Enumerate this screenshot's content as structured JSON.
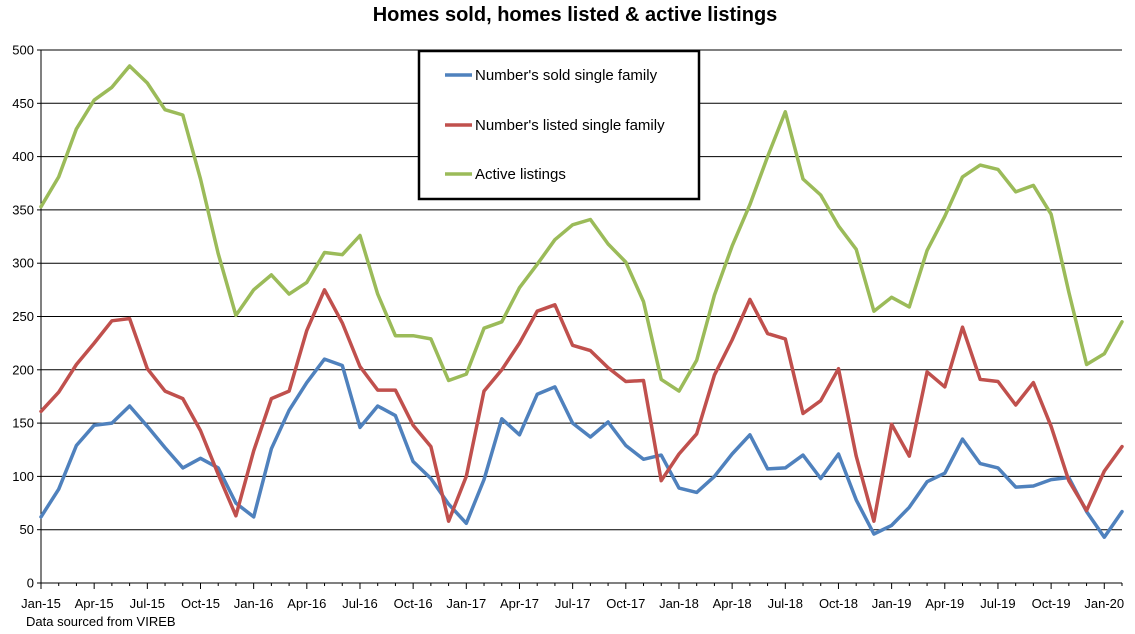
{
  "chart_data": {
    "type": "line",
    "title": "Homes sold, homes listed & active listings",
    "source_note": "Data sourced from VIREB",
    "xlabel": "",
    "ylabel": "",
    "ylim": [
      0,
      500
    ],
    "yticks": [
      0,
      50,
      100,
      150,
      200,
      250,
      300,
      350,
      400,
      450,
      500
    ],
    "grid": true,
    "legend_position": "top-center",
    "x": [
      "Jan-15",
      "Feb-15",
      "Mar-15",
      "Apr-15",
      "May-15",
      "Jun-15",
      "Jul-15",
      "Aug-15",
      "Sep-15",
      "Oct-15",
      "Nov-15",
      "Dec-15",
      "Jan-16",
      "Feb-16",
      "Mar-16",
      "Apr-16",
      "May-16",
      "Jun-16",
      "Jul-16",
      "Aug-16",
      "Sep-16",
      "Oct-16",
      "Nov-16",
      "Dec-16",
      "Jan-17",
      "Feb-17",
      "Mar-17",
      "Apr-17",
      "May-17",
      "Jun-17",
      "Jul-17",
      "Aug-17",
      "Sep-17",
      "Oct-17",
      "Nov-17",
      "Dec-17",
      "Jan-18",
      "Feb-18",
      "Mar-18",
      "Apr-18",
      "May-18",
      "Jun-18",
      "Jul-18",
      "Aug-18",
      "Sep-18",
      "Oct-18",
      "Nov-18",
      "Dec-18",
      "Jan-19",
      "Feb-19",
      "Mar-19",
      "Apr-19",
      "May-19",
      "Jun-19",
      "Jul-19",
      "Aug-19",
      "Sep-19",
      "Oct-19",
      "Nov-19",
      "Dec-19",
      "Jan-20",
      "Feb-20"
    ],
    "x_tick_labels": [
      "Jan-15",
      "Apr-15",
      "Jul-15",
      "Oct-15",
      "Jan-16",
      "Apr-16",
      "Jul-16",
      "Oct-16",
      "Jan-17",
      "Apr-17",
      "Jul-17",
      "Oct-17",
      "Jan-18",
      "Apr-18",
      "Jul-18",
      "Oct-18",
      "Jan-19",
      "Apr-19",
      "Jul-19",
      "Oct-19",
      "Jan-20"
    ],
    "series": [
      {
        "name": "Number's sold single family",
        "color": "#4f81bd",
        "values": [
          62,
          88,
          129,
          148,
          150,
          166,
          147,
          127,
          108,
          117,
          108,
          75,
          62,
          126,
          162,
          188,
          210,
          204,
          146,
          166,
          157,
          114,
          98,
          74,
          56,
          97,
          154,
          139,
          177,
          184,
          150,
          137,
          151,
          129,
          116,
          120,
          89,
          85,
          100,
          121,
          139,
          107,
          108,
          120,
          98,
          121,
          78,
          46,
          54,
          71,
          95,
          103,
          135,
          112,
          108,
          90,
          91,
          97,
          99,
          67,
          43,
          67
        ],
        "legend_y": 75
      },
      {
        "name": "Number's listed single family",
        "color": "#c0504d",
        "values": [
          161,
          179,
          205,
          225,
          246,
          248,
          201,
          180,
          173,
          143,
          102,
          63,
          124,
          173,
          180,
          237,
          275,
          244,
          203,
          181,
          181,
          148,
          128,
          58,
          100,
          180,
          200,
          225,
          255,
          261,
          223,
          218,
          202,
          189,
          190,
          96,
          121,
          140,
          195,
          228,
          266,
          234,
          229,
          159,
          171,
          201,
          119,
          58,
          149,
          119,
          198,
          184,
          240,
          191,
          189,
          167,
          188,
          147,
          96,
          68,
          105,
          128
        ],
        "legend_y": 125
      },
      {
        "name": "Active listings",
        "color": "#9bbb59",
        "values": [
          353,
          381,
          426,
          453,
          465,
          485,
          469,
          444,
          439,
          379,
          309,
          251,
          275,
          289,
          271,
          282,
          310,
          308,
          326,
          271,
          232,
          232,
          229,
          190,
          196,
          239,
          245,
          277,
          299,
          322,
          336,
          341,
          318,
          301,
          264,
          191,
          180,
          209,
          270,
          316,
          355,
          400,
          442,
          379,
          364,
          335,
          313,
          255,
          268,
          259,
          312,
          344,
          381,
          392,
          388,
          367,
          373,
          346,
          273,
          205,
          215,
          245
        ],
        "legend_y": 174
      }
    ]
  }
}
